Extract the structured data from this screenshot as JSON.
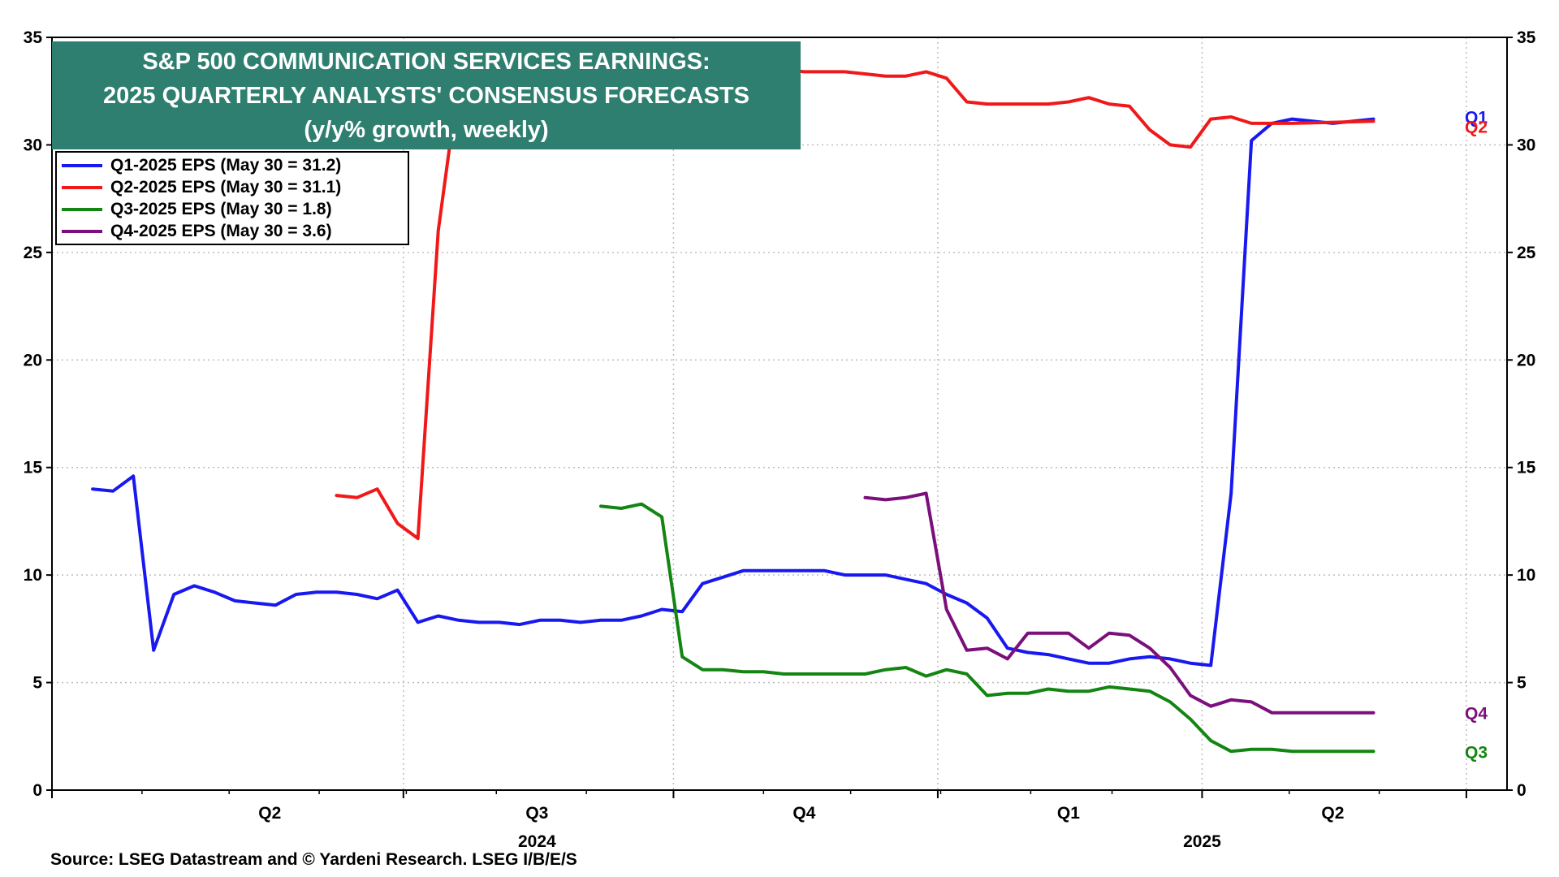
{
  "chart_data": {
    "type": "line",
    "title": [
      "S&P 500 COMMUNICATION SERVICES EARNINGS:",
      "2025 QUARTERLY ANALYSTS' CONSENSUS FORECASTS",
      "(y/y% growth, weekly)"
    ],
    "ylim": [
      0,
      35
    ],
    "yticks": [
      "0",
      "5",
      "10",
      "15",
      "20",
      "25",
      "30",
      "35"
    ],
    "xlim": [
      "2024-03-01",
      "2025-07-15"
    ],
    "quarter_labels": [
      {
        "label": "Q2",
        "date": "2024-05-15"
      },
      {
        "label": "Q3",
        "date": "2024-08-15"
      },
      {
        "label": "Q4",
        "date": "2024-11-15"
      },
      {
        "label": "Q1",
        "date": "2025-02-14"
      },
      {
        "label": "Q2",
        "date": "2025-05-16"
      }
    ],
    "year_labels": [
      {
        "label": "2024",
        "date": "2024-08-15"
      },
      {
        "label": "2025",
        "date": "2025-04-01"
      }
    ],
    "major_ticks": [
      "2024-03-01",
      "2024-06-30",
      "2024-10-01",
      "2024-12-31",
      "2025-04-01",
      "2025-07-01"
    ],
    "grid": true,
    "legend_position": "top-left",
    "series": [
      {
        "name": "Q1-2025 EPS (May 30 = 31.2)",
        "end_label": "Q1",
        "color": "#1818f0",
        "points": [
          [
            "2024-03-15",
            14.0
          ],
          [
            "2024-03-22",
            13.9
          ],
          [
            "2024-03-29",
            14.6
          ],
          [
            "2024-04-05",
            6.5
          ],
          [
            "2024-04-12",
            9.1
          ],
          [
            "2024-04-19",
            9.5
          ],
          [
            "2024-04-26",
            9.2
          ],
          [
            "2024-05-03",
            8.8
          ],
          [
            "2024-05-10",
            8.7
          ],
          [
            "2024-05-17",
            8.6
          ],
          [
            "2024-05-24",
            9.1
          ],
          [
            "2024-05-31",
            9.2
          ],
          [
            "2024-06-07",
            9.2
          ],
          [
            "2024-06-14",
            9.1
          ],
          [
            "2024-06-21",
            8.9
          ],
          [
            "2024-06-28",
            9.3
          ],
          [
            "2024-07-05",
            7.8
          ],
          [
            "2024-07-12",
            8.1
          ],
          [
            "2024-07-19",
            7.9
          ],
          [
            "2024-07-26",
            7.8
          ],
          [
            "2024-08-02",
            7.8
          ],
          [
            "2024-08-09",
            7.7
          ],
          [
            "2024-08-16",
            7.9
          ],
          [
            "2024-08-23",
            7.9
          ],
          [
            "2024-08-30",
            7.8
          ],
          [
            "2024-09-06",
            7.9
          ],
          [
            "2024-09-13",
            7.9
          ],
          [
            "2024-09-20",
            8.1
          ],
          [
            "2024-09-27",
            8.4
          ],
          [
            "2024-10-04",
            8.3
          ],
          [
            "2024-10-11",
            9.6
          ],
          [
            "2024-10-18",
            9.9
          ],
          [
            "2024-10-25",
            10.2
          ],
          [
            "2024-11-01",
            10.2
          ],
          [
            "2024-11-08",
            10.2
          ],
          [
            "2024-11-15",
            10.2
          ],
          [
            "2024-11-22",
            10.2
          ],
          [
            "2024-11-29",
            10.0
          ],
          [
            "2024-12-06",
            10.0
          ],
          [
            "2024-12-13",
            10.0
          ],
          [
            "2024-12-20",
            9.8
          ],
          [
            "2024-12-27",
            9.6
          ],
          [
            "2025-01-03",
            9.1
          ],
          [
            "2025-01-10",
            8.7
          ],
          [
            "2025-01-17",
            8.0
          ],
          [
            "2025-01-24",
            6.6
          ],
          [
            "2025-01-31",
            6.4
          ],
          [
            "2025-02-07",
            6.3
          ],
          [
            "2025-02-14",
            6.1
          ],
          [
            "2025-02-21",
            5.9
          ],
          [
            "2025-02-28",
            5.9
          ],
          [
            "2025-03-07",
            6.1
          ],
          [
            "2025-03-14",
            6.2
          ],
          [
            "2025-03-21",
            6.1
          ],
          [
            "2025-03-28",
            5.9
          ],
          [
            "2025-04-04",
            5.8
          ],
          [
            "2025-04-11",
            13.8
          ],
          [
            "2025-04-18",
            30.2
          ],
          [
            "2025-04-25",
            31.0
          ],
          [
            "2025-05-02",
            31.2
          ],
          [
            "2025-05-09",
            31.1
          ],
          [
            "2025-05-16",
            31.0
          ],
          [
            "2025-05-30",
            31.2
          ]
        ]
      },
      {
        "name": "Q2-2025 EPS (May 30 = 31.1)",
        "end_label": "Q2",
        "color": "#f01818",
        "points": [
          [
            "2024-06-07",
            13.7
          ],
          [
            "2024-06-14",
            13.6
          ],
          [
            "2024-06-21",
            14.0
          ],
          [
            "2024-06-28",
            12.4
          ],
          [
            "2024-07-05",
            11.7
          ],
          [
            "2024-07-12",
            26.0
          ],
          [
            "2024-07-19",
            33.0
          ],
          [
            "2024-07-26",
            33.0
          ],
          [
            "2024-08-02",
            33.0
          ],
          [
            "2024-08-09",
            33.0
          ],
          [
            "2024-08-16",
            33.0
          ],
          [
            "2024-08-23",
            33.0
          ],
          [
            "2024-08-30",
            33.0
          ],
          [
            "2024-09-06",
            33.0
          ],
          [
            "2024-09-13",
            33.0
          ],
          [
            "2024-09-20",
            33.0
          ],
          [
            "2024-09-27",
            33.0
          ],
          [
            "2024-10-04",
            33.0
          ],
          [
            "2024-10-11",
            33.0
          ],
          [
            "2024-10-18",
            33.4
          ],
          [
            "2024-10-25",
            33.4
          ],
          [
            "2024-11-01",
            33.5
          ],
          [
            "2024-11-08",
            33.5
          ],
          [
            "2024-11-15",
            33.4
          ],
          [
            "2024-11-22",
            33.4
          ],
          [
            "2024-11-29",
            33.4
          ],
          [
            "2024-12-06",
            33.3
          ],
          [
            "2024-12-13",
            33.2
          ],
          [
            "2024-12-20",
            33.2
          ],
          [
            "2024-12-27",
            33.4
          ],
          [
            "2025-01-03",
            33.1
          ],
          [
            "2025-01-10",
            32.0
          ],
          [
            "2025-01-17",
            31.9
          ],
          [
            "2025-01-24",
            31.9
          ],
          [
            "2025-01-31",
            31.9
          ],
          [
            "2025-02-07",
            31.9
          ],
          [
            "2025-02-14",
            32.0
          ],
          [
            "2025-02-21",
            32.2
          ],
          [
            "2025-02-28",
            31.9
          ],
          [
            "2025-03-07",
            31.8
          ],
          [
            "2025-03-14",
            30.7
          ],
          [
            "2025-03-21",
            30.0
          ],
          [
            "2025-03-28",
            29.9
          ],
          [
            "2025-04-04",
            31.2
          ],
          [
            "2025-04-11",
            31.3
          ],
          [
            "2025-04-18",
            31.0
          ],
          [
            "2025-04-25",
            31.0
          ],
          [
            "2025-05-02",
            31.0
          ],
          [
            "2025-05-30",
            31.1
          ]
        ]
      },
      {
        "name": "Q3-2025 EPS (May 30 = 1.8)",
        "end_label": "Q3",
        "color": "#138513",
        "points": [
          [
            "2024-09-06",
            13.2
          ],
          [
            "2024-09-13",
            13.1
          ],
          [
            "2024-09-20",
            13.3
          ],
          [
            "2024-09-27",
            12.7
          ],
          [
            "2024-10-04",
            6.2
          ],
          [
            "2024-10-11",
            5.6
          ],
          [
            "2024-10-18",
            5.6
          ],
          [
            "2024-10-25",
            5.5
          ],
          [
            "2024-11-01",
            5.5
          ],
          [
            "2024-11-08",
            5.4
          ],
          [
            "2024-11-15",
            5.4
          ],
          [
            "2024-11-22",
            5.4
          ],
          [
            "2024-11-29",
            5.4
          ],
          [
            "2024-12-06",
            5.4
          ],
          [
            "2024-12-13",
            5.6
          ],
          [
            "2024-12-20",
            5.7
          ],
          [
            "2024-12-27",
            5.3
          ],
          [
            "2025-01-03",
            5.6
          ],
          [
            "2025-01-10",
            5.4
          ],
          [
            "2025-01-17",
            4.4
          ],
          [
            "2025-01-24",
            4.5
          ],
          [
            "2025-01-31",
            4.5
          ],
          [
            "2025-02-07",
            4.7
          ],
          [
            "2025-02-14",
            4.6
          ],
          [
            "2025-02-21",
            4.6
          ],
          [
            "2025-02-28",
            4.8
          ],
          [
            "2025-03-07",
            4.7
          ],
          [
            "2025-03-14",
            4.6
          ],
          [
            "2025-03-21",
            4.1
          ],
          [
            "2025-03-28",
            3.3
          ],
          [
            "2025-04-04",
            2.3
          ],
          [
            "2025-04-11",
            1.8
          ],
          [
            "2025-04-18",
            1.9
          ],
          [
            "2025-04-25",
            1.9
          ],
          [
            "2025-05-02",
            1.8
          ],
          [
            "2025-05-30",
            1.8
          ]
        ]
      },
      {
        "name": "Q4-2025 EPS (May 30 = 3.6)",
        "end_label": "Q4",
        "color": "#7b0f7b",
        "points": [
          [
            "2024-12-06",
            13.6
          ],
          [
            "2024-12-13",
            13.5
          ],
          [
            "2024-12-20",
            13.6
          ],
          [
            "2024-12-27",
            13.8
          ],
          [
            "2025-01-03",
            8.4
          ],
          [
            "2025-01-10",
            6.5
          ],
          [
            "2025-01-17",
            6.6
          ],
          [
            "2025-01-24",
            6.1
          ],
          [
            "2025-01-31",
            7.3
          ],
          [
            "2025-02-07",
            7.3
          ],
          [
            "2025-02-14",
            7.3
          ],
          [
            "2025-02-21",
            6.6
          ],
          [
            "2025-02-28",
            7.3
          ],
          [
            "2025-03-07",
            7.2
          ],
          [
            "2025-03-14",
            6.6
          ],
          [
            "2025-03-21",
            5.7
          ],
          [
            "2025-03-28",
            4.4
          ],
          [
            "2025-04-04",
            3.9
          ],
          [
            "2025-04-11",
            4.2
          ],
          [
            "2025-04-18",
            4.1
          ],
          [
            "2025-04-25",
            3.6
          ],
          [
            "2025-05-30",
            3.6
          ]
        ]
      }
    ],
    "source": "Source: LSEG Datastream and © Yardeni Research. LSEG I/B/E/S"
  }
}
